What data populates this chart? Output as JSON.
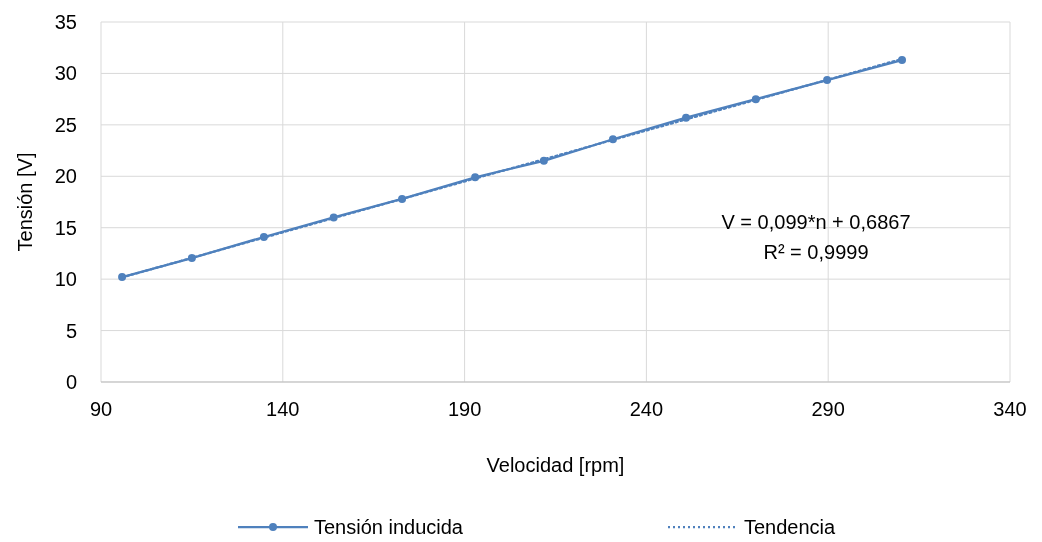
{
  "chart_data": {
    "type": "line",
    "xlabel": "Velocidad [rpm]",
    "ylabel": "Tensión [V]",
    "xlim": [
      90,
      340
    ],
    "xticks": [
      90,
      140,
      190,
      240,
      290,
      340
    ],
    "ylim": [
      0,
      35
    ],
    "yticks": [
      0,
      5,
      10,
      15,
      20,
      25,
      30,
      35
    ],
    "grid": true,
    "legend": "bottom",
    "series": [
      {
        "name": "Tensión inducida",
        "color": "#4f81bd",
        "marker": "circle",
        "line_style": "solid",
        "x": [
          95.8,
          115,
          134.8,
          154,
          172.8,
          192.9,
          211.8,
          230.8,
          250.9,
          270.1,
          289.7,
          310.3
        ],
        "values": [
          10.2,
          12.05,
          14.1,
          16.0,
          17.8,
          19.9,
          21.5,
          23.6,
          25.7,
          27.5,
          29.35,
          31.3
        ]
      },
      {
        "name": "Tendencia",
        "color": "#4f81bd",
        "marker": "none",
        "line_style": "dotted",
        "x": [
          95.8,
          310.3
        ],
        "values": [
          10.17,
          31.41
        ]
      }
    ],
    "annotations": [
      "V = 0,099*n + 0,6867",
      "R² = 0,9999"
    ]
  }
}
